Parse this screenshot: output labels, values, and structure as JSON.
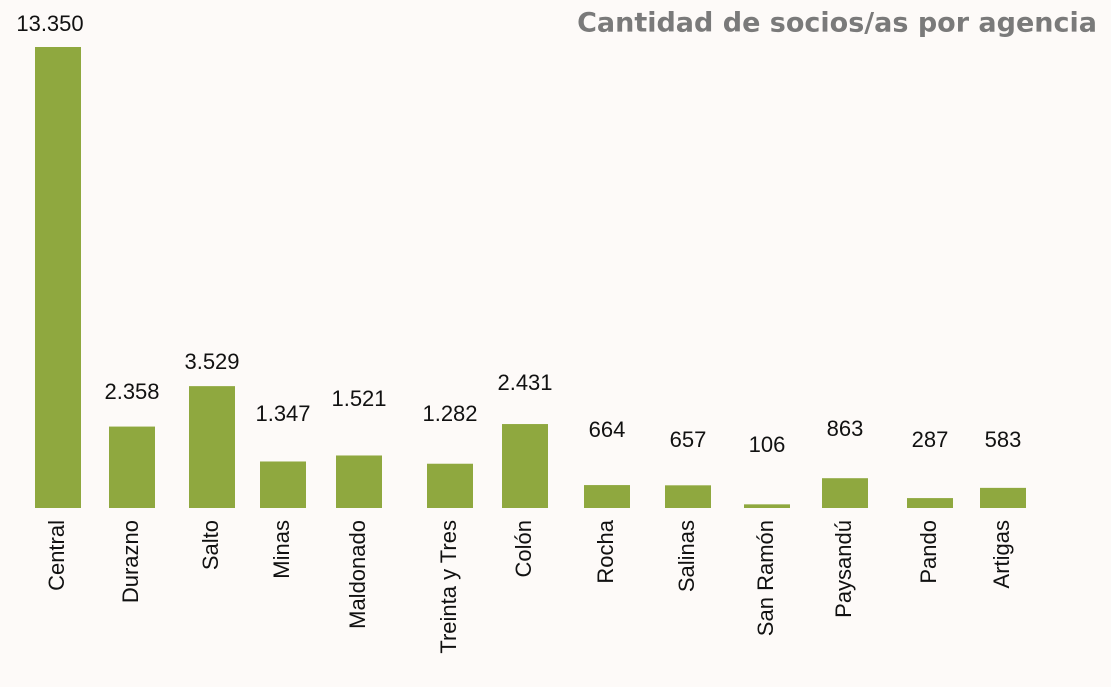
{
  "chart_data": {
    "type": "bar",
    "title": "Cantidad de socios/as por agencia",
    "categories": [
      "Central",
      "Durazno",
      "Salto",
      "Minas",
      "Maldonado",
      "Treinta y Tres",
      "Colón",
      "Rocha",
      "Salinas",
      "San Ramón",
      "Paysandú",
      "Pando",
      "Artigas"
    ],
    "values": [
      13350,
      2358,
      3529,
      1347,
      1521,
      1282,
      2431,
      664,
      657,
      106,
      863,
      287,
      583
    ],
    "value_labels": [
      "13.350",
      "2.358",
      "3.529",
      "1.347",
      "1.521",
      "1.282",
      "2.431",
      "664",
      "657",
      "106",
      "863",
      "287",
      "583"
    ],
    "color": "#8fa83f"
  }
}
